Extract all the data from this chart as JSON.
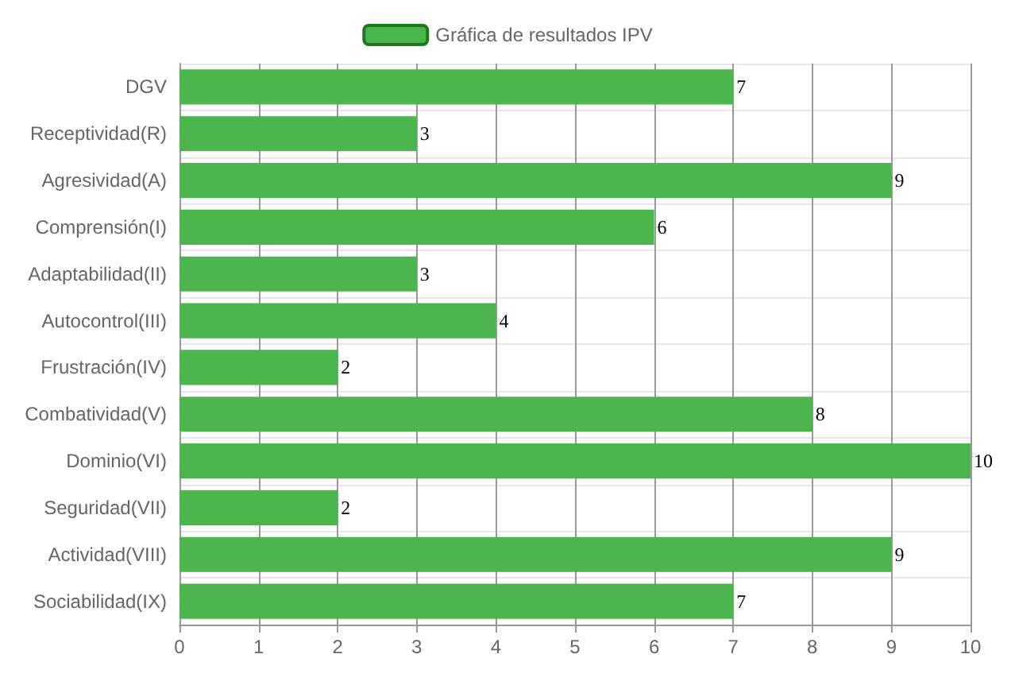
{
  "chart_data": {
    "type": "bar",
    "orientation": "horizontal",
    "categories": [
      "DGV",
      "Receptividad(R)",
      "Agresividad(A)",
      "Comprensión(I)",
      "Adaptabilidad(II)",
      "Autocontrol(III)",
      "Frustración(IV)",
      "Combatividad(V)",
      "Dominio(VI)",
      "Seguridad(VII)",
      "Actividad(VIII)",
      "Sociabilidad(IX)"
    ],
    "series": [
      {
        "name": "Gráfica de resultados IPV",
        "color": "#4db54d",
        "values": [
          7,
          3,
          9,
          6,
          3,
          4,
          2,
          8,
          10,
          2,
          9,
          7
        ]
      }
    ],
    "xlim": [
      0,
      10
    ],
    "xticks": [
      0,
      1,
      2,
      3,
      4,
      5,
      6,
      7,
      8,
      9,
      10
    ],
    "grid": true,
    "legend": "top",
    "data_labels": true
  }
}
